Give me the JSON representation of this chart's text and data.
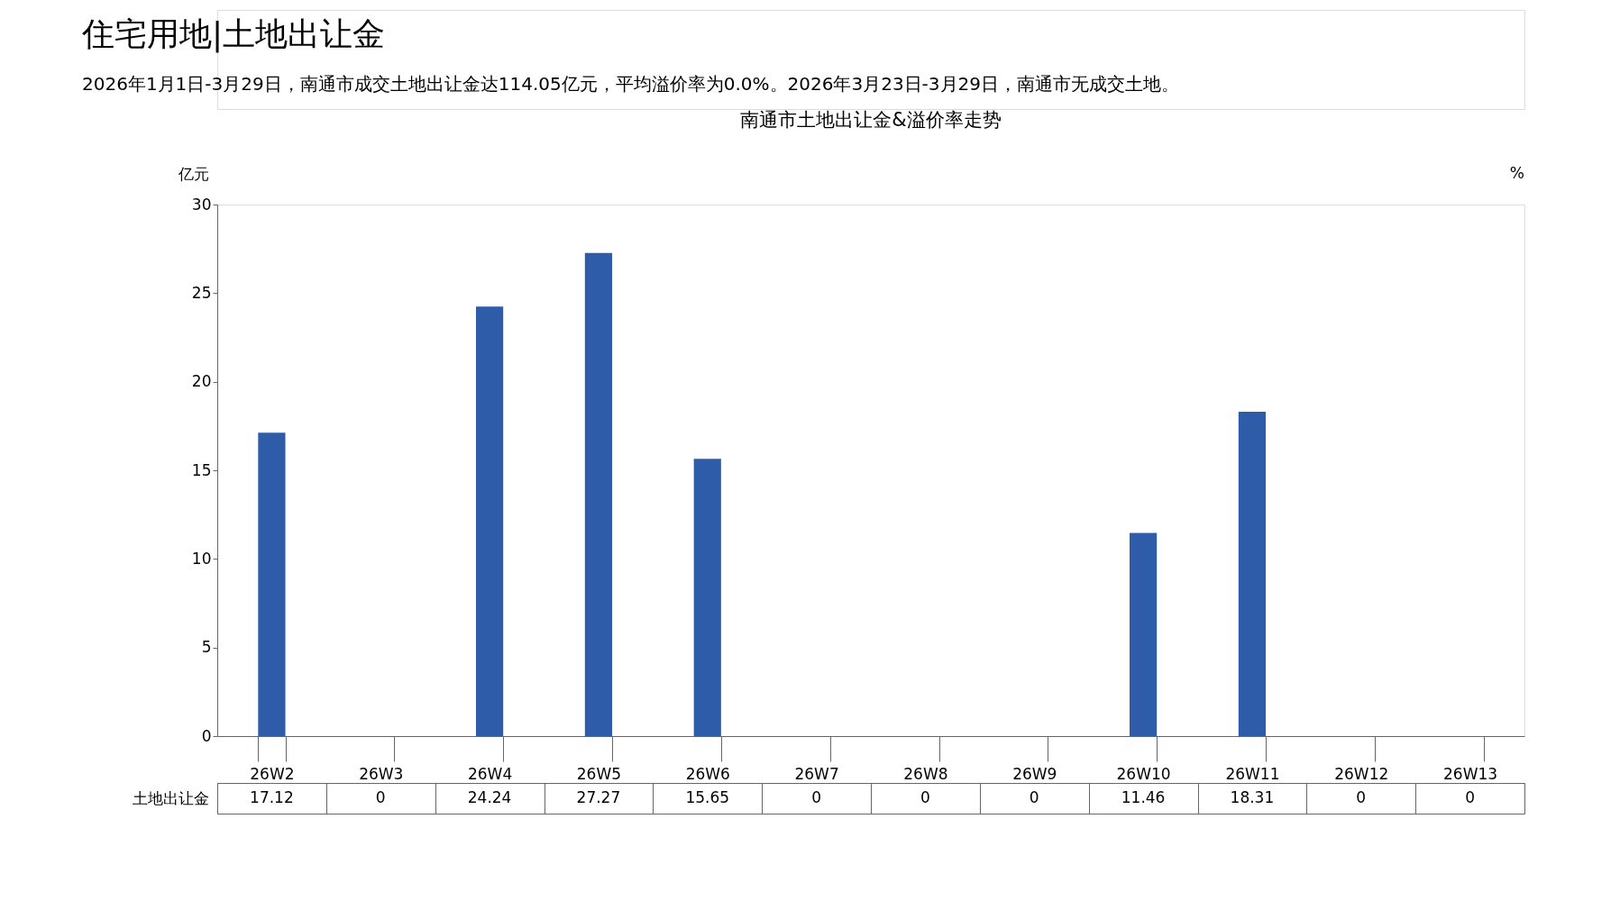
{
  "chart_data": {
    "type": "bar",
    "title": "南通市土地出让金&溢价率走势",
    "annotations": [
      "住宅用地|土地出让金",
      "2026年1月1日-3月29日，南通市成交土地出让金达114.05亿元，平均溢价率为0.0%。2026年3月23日-3月29日，南通市无成交土地。"
    ],
    "ylabel": "亿元",
    "y2label": "%",
    "categories": [
      "26W2",
      "26W3",
      "26W4",
      "26W5",
      "26W6",
      "26W7",
      "26W8",
      "26W9",
      "26W10",
      "26W11",
      "26W12",
      "26W13"
    ],
    "series": [
      {
        "name": "土地出让金",
        "color": "#2e5ca8",
        "values": [
          17.12,
          0,
          24.24,
          27.27,
          15.65,
          0,
          0,
          0,
          11.46,
          18.31,
          0,
          0
        ]
      }
    ],
    "ylim": [
      0,
      30
    ],
    "yticks": [
      0,
      5,
      10,
      15,
      20,
      25,
      30
    ],
    "data_labels": true,
    "grid": false
  }
}
